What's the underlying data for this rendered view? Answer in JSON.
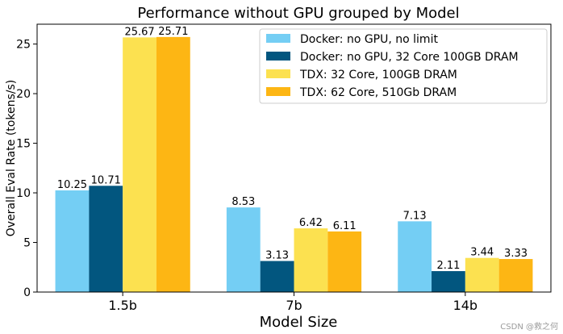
{
  "chart_data": {
    "type": "bar",
    "title": "Performance without GPU grouped by Model",
    "xlabel": "Model Size",
    "ylabel": "Overall Eval Rate (tokens/s)",
    "categories": [
      "1.5b",
      "7b",
      "14b"
    ],
    "ylim": [
      0,
      27
    ],
    "yticks": [
      0,
      5,
      10,
      15,
      20,
      25
    ],
    "grid": false,
    "legend_position": "top-right",
    "series": [
      {
        "name": "Docker: no GPU, no limit",
        "color": "#74CEF4",
        "values": [
          10.25,
          8.53,
          7.13
        ],
        "labels": [
          "10.25",
          "8.53",
          "7.13"
        ]
      },
      {
        "name": "Docker: no GPU, 32 Core 100GB DRAM",
        "color": "#02567F",
        "values": [
          10.71,
          3.13,
          2.11
        ],
        "labels": [
          "10.71",
          "3.13",
          "2.11"
        ]
      },
      {
        "name": "TDX: 32 Core, 100GB DRAM",
        "color": "#FCE150",
        "values": [
          25.67,
          6.42,
          3.44
        ],
        "labels": [
          "25.67",
          "6.42",
          "3.44"
        ]
      },
      {
        "name": "TDX: 62 Core, 510Gb DRAM",
        "color": "#FDB614",
        "values": [
          25.71,
          6.11,
          3.33
        ],
        "labels": [
          "25.71",
          "6.11",
          "3.33"
        ]
      }
    ]
  },
  "watermark": "CSDN @救之何"
}
